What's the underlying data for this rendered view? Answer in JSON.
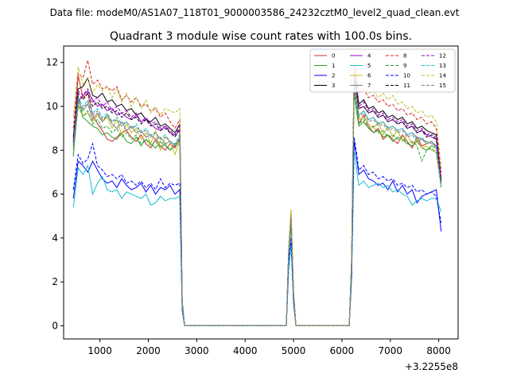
{
  "chart_data": {
    "type": "line",
    "suptitle": "Data file: modeM0/AS1A07_118T01_9000003586_24232cztM0_level2_quad_clean.evt",
    "title": "Quadrant 3 module wise count rates with 100.0s bins.",
    "xlabel": "",
    "ylabel": "",
    "x_offset_label": "+3.2255e8",
    "xlim": [
      250,
      8400
    ],
    "ylim": [
      -0.6,
      12.75
    ],
    "xticks": [
      1000,
      2000,
      3000,
      4000,
      5000,
      6000,
      7000,
      8000
    ],
    "yticks": [
      0,
      2,
      4,
      6,
      8,
      10,
      12
    ],
    "grid": false,
    "legend_position": "top-right",
    "legend_columns": 4,
    "gaps": [
      [
        2800,
        4800
      ],
      [
        5150,
        6100
      ]
    ],
    "x": [
      450,
      550,
      650,
      750,
      850,
      950,
      1050,
      1150,
      1250,
      1350,
      1450,
      1550,
      1650,
      1750,
      1850,
      1950,
      2050,
      2150,
      2250,
      2350,
      2450,
      2550,
      2650,
      2700,
      2750,
      4850,
      4900,
      4950,
      5000,
      5050,
      6150,
      6200,
      6250,
      6300,
      6350,
      6450,
      6550,
      6650,
      6750,
      6850,
      6950,
      7050,
      7150,
      7250,
      7350,
      7450,
      7550,
      7650,
      7750,
      7850,
      7950,
      8050
    ],
    "series": [
      {
        "name": "0",
        "color": "#d62728",
        "dash": "solid",
        "values": [
          8.2,
          11.4,
          10.4,
          10.6,
          9.6,
          9.2,
          8.9,
          8.5,
          8.4,
          8.6,
          8.8,
          8.9,
          8.6,
          8.4,
          8.7,
          8.3,
          8.1,
          8.5,
          8.2,
          8.0,
          8.3,
          8.1,
          8.6,
          1.0,
          0.0,
          0.0,
          3.3,
          4.7,
          1.4,
          0.0,
          0.0,
          2.8,
          10.8,
          10.3,
          9.2,
          9.6,
          9.1,
          8.8,
          9.0,
          8.5,
          8.7,
          8.5,
          8.3,
          8.7,
          8.4,
          8.1,
          8.6,
          8.2,
          8.3,
          8.4,
          8.2,
          6.8
        ]
      },
      {
        "name": "1",
        "color": "#2ca02c",
        "dash": "solid",
        "values": [
          7.7,
          10.5,
          9.5,
          9.3,
          9.1,
          9.0,
          8.7,
          8.8,
          8.6,
          8.5,
          8.8,
          8.4,
          8.3,
          8.6,
          8.2,
          8.5,
          8.3,
          8.1,
          8.4,
          8.2,
          8.0,
          8.3,
          8.4,
          0.9,
          0.0,
          0.0,
          3.2,
          4.6,
          1.3,
          0.0,
          0.0,
          2.7,
          10.6,
          9.8,
          9.1,
          9.3,
          9.0,
          8.8,
          8.9,
          8.6,
          8.7,
          8.4,
          8.6,
          8.5,
          8.3,
          8.2,
          8.4,
          8.1,
          8.0,
          8.2,
          8.1,
          6.5
        ]
      },
      {
        "name": "2",
        "color": "#0000ff",
        "dash": "solid",
        "values": [
          5.8,
          7.5,
          7.3,
          7.0,
          7.5,
          7.1,
          6.7,
          6.5,
          6.6,
          6.3,
          6.7,
          6.4,
          6.2,
          6.3,
          6.5,
          6.1,
          6.4,
          6.0,
          6.3,
          6.2,
          6.4,
          6.0,
          6.2,
          0.7,
          0.0,
          0.0,
          2.7,
          3.8,
          1.1,
          0.0,
          0.0,
          2.2,
          8.4,
          7.7,
          6.9,
          7.1,
          6.7,
          6.6,
          6.4,
          6.5,
          6.2,
          6.6,
          6.1,
          6.4,
          6.0,
          6.2,
          5.6,
          5.9,
          6.0,
          6.1,
          6.2,
          4.3
        ]
      },
      {
        "name": "3",
        "color": "#000000",
        "dash": "solid",
        "values": [
          8.6,
          10.8,
          10.9,
          11.3,
          10.5,
          10.4,
          10.6,
          10.2,
          10.3,
          10.0,
          10.1,
          9.8,
          9.9,
          9.6,
          9.7,
          9.4,
          9.3,
          9.5,
          9.1,
          9.2,
          9.0,
          8.8,
          9.2,
          1.1,
          0.0,
          0.0,
          3.4,
          5.0,
          1.5,
          0.0,
          0.0,
          3.0,
          11.6,
          11.0,
          10.1,
          10.3,
          9.9,
          10.0,
          9.7,
          9.8,
          9.5,
          9.6,
          9.4,
          9.5,
          9.2,
          9.3,
          9.0,
          9.1,
          8.9,
          8.8,
          8.7,
          6.7
        ]
      },
      {
        "name": "4",
        "color": "#9900cc",
        "dash": "solid",
        "values": [
          8.3,
          10.2,
          10.5,
          10.7,
          10.3,
          10.0,
          10.1,
          9.8,
          9.9,
          9.6,
          9.7,
          9.5,
          9.4,
          9.6,
          9.3,
          9.4,
          9.2,
          9.0,
          8.9,
          9.1,
          8.8,
          8.7,
          8.9,
          1.1,
          0.0,
          0.0,
          3.4,
          4.9,
          1.4,
          0.0,
          0.0,
          2.9,
          11.4,
          10.8,
          9.9,
          10.0,
          9.7,
          9.8,
          9.5,
          9.6,
          9.3,
          9.4,
          9.2,
          9.3,
          9.0,
          9.1,
          8.8,
          8.9,
          8.7,
          8.6,
          8.5,
          6.6
        ]
      },
      {
        "name": "5",
        "color": "#17becf",
        "dash": "solid",
        "values": [
          5.4,
          7.2,
          6.9,
          7.3,
          6.0,
          6.5,
          6.8,
          6.2,
          6.1,
          6.2,
          5.8,
          6.1,
          6.0,
          5.9,
          5.8,
          6.0,
          5.5,
          5.6,
          5.9,
          5.7,
          5.8,
          5.8,
          5.9,
          0.7,
          0.0,
          0.0,
          2.6,
          3.7,
          1.0,
          0.0,
          0.0,
          2.1,
          8.0,
          7.2,
          6.4,
          6.6,
          6.3,
          6.4,
          6.5,
          6.3,
          6.4,
          6.1,
          6.2,
          6.0,
          5.9,
          5.5,
          5.7,
          5.8,
          5.7,
          5.8,
          5.8,
          5.2
        ]
      },
      {
        "name": "6",
        "color": "#bcbd22",
        "dash": "solid",
        "values": [
          7.9,
          10.0,
          9.6,
          9.7,
          9.3,
          9.6,
          9.3,
          9.5,
          9.0,
          9.4,
          8.7,
          9.2,
          8.8,
          9.0,
          8.5,
          8.8,
          8.3,
          8.9,
          8.0,
          8.6,
          8.4,
          7.8,
          8.5,
          1.0,
          0.0,
          0.0,
          3.3,
          5.3,
          1.4,
          0.0,
          0.0,
          2.8,
          10.9,
          10.4,
          9.4,
          9.5,
          9.2,
          9.0,
          9.3,
          8.7,
          9.1,
          8.6,
          8.9,
          8.4,
          8.7,
          8.3,
          8.5,
          8.1,
          8.2,
          8.0,
          7.9,
          6.4
        ]
      },
      {
        "name": "7",
        "color": "#7f7f7f",
        "dash": "solid",
        "values": [
          8.0,
          10.3,
          9.8,
          10.1,
          9.4,
          9.7,
          9.3,
          9.6,
          9.2,
          9.0,
          9.3,
          8.9,
          9.1,
          8.8,
          8.9,
          8.6,
          8.7,
          8.5,
          8.6,
          8.3,
          8.4,
          8.2,
          8.5,
          1.0,
          0.0,
          0.0,
          3.3,
          4.8,
          1.4,
          0.0,
          0.0,
          2.9,
          11.2,
          10.5,
          9.6,
          9.8,
          9.4,
          9.5,
          9.2,
          9.3,
          9.0,
          9.1,
          8.9,
          9.0,
          8.7,
          8.8,
          8.6,
          8.5,
          8.4,
          8.3,
          8.2,
          6.5
        ]
      },
      {
        "name": "8",
        "color": "#d62728",
        "dash": "dashed",
        "values": [
          9.0,
          11.5,
          11.3,
          12.1,
          11.0,
          11.2,
          10.8,
          10.9,
          10.7,
          10.9,
          10.3,
          10.5,
          10.2,
          10.4,
          10.0,
          10.1,
          9.8,
          9.9,
          9.5,
          9.7,
          9.3,
          9.0,
          9.4,
          1.1,
          0.0,
          0.0,
          3.5,
          5.1,
          1.5,
          0.0,
          0.0,
          3.0,
          12.0,
          11.5,
          10.6,
          10.8,
          10.4,
          10.5,
          10.2,
          10.3,
          10.0,
          10.1,
          9.8,
          9.9,
          9.6,
          9.7,
          9.4,
          9.5,
          9.2,
          9.3,
          9.0,
          7.0
        ]
      },
      {
        "name": "9",
        "color": "#2ca02c",
        "dash": "dashed",
        "values": [
          7.8,
          10.1,
          9.5,
          9.8,
          9.2,
          9.4,
          9.0,
          9.1,
          8.8,
          9.0,
          8.6,
          8.8,
          8.5,
          8.7,
          8.3,
          8.5,
          8.2,
          8.4,
          8.1,
          8.3,
          8.0,
          8.2,
          8.3,
          1.0,
          0.0,
          0.0,
          3.2,
          4.6,
          1.3,
          0.0,
          0.0,
          2.8,
          10.7,
          10.0,
          9.2,
          9.4,
          9.0,
          9.1,
          8.8,
          8.9,
          8.6,
          8.7,
          8.5,
          8.6,
          8.3,
          8.4,
          8.2,
          7.5,
          8.0,
          8.1,
          7.9,
          6.3
        ]
      },
      {
        "name": "10",
        "color": "#0000ff",
        "dash": "dashed",
        "values": [
          6.2,
          7.8,
          7.4,
          7.6,
          8.3,
          7.3,
          7.1,
          6.8,
          6.9,
          6.7,
          6.9,
          6.5,
          6.6,
          6.4,
          6.6,
          6.3,
          6.5,
          6.2,
          6.7,
          6.3,
          6.5,
          6.4,
          6.5,
          0.8,
          0.0,
          0.0,
          2.8,
          4.0,
          1.1,
          0.0,
          0.0,
          2.3,
          8.6,
          7.9,
          7.1,
          7.3,
          6.9,
          7.0,
          6.7,
          6.8,
          6.6,
          6.7,
          6.4,
          6.5,
          6.3,
          6.4,
          6.1,
          6.2,
          6.0,
          6.1,
          5.9,
          4.7
        ]
      },
      {
        "name": "11",
        "color": "#000000",
        "dash": "dashed",
        "values": [
          8.4,
          10.6,
          10.3,
          10.6,
          10.0,
          10.2,
          9.9,
          10.0,
          9.7,
          9.8,
          9.5,
          9.7,
          9.4,
          9.5,
          9.2,
          9.4,
          9.1,
          9.2,
          8.9,
          9.0,
          8.8,
          8.6,
          9.0,
          1.1,
          0.0,
          0.0,
          3.4,
          4.9,
          1.4,
          0.0,
          0.0,
          2.9,
          11.3,
          10.7,
          9.9,
          10.0,
          9.7,
          9.8,
          9.5,
          9.6,
          9.3,
          9.4,
          9.2,
          9.3,
          9.0,
          9.1,
          8.8,
          8.9,
          8.6,
          8.7,
          8.5,
          6.6
        ]
      },
      {
        "name": "12",
        "color": "#9900cc",
        "dash": "dashed",
        "values": [
          8.5,
          10.7,
          10.5,
          10.8,
          10.2,
          10.4,
          10.0,
          10.2,
          9.8,
          10.0,
          9.7,
          9.8,
          9.5,
          9.7,
          9.3,
          9.5,
          9.2,
          9.3,
          9.0,
          9.1,
          8.9,
          8.7,
          9.1,
          1.1,
          0.0,
          0.0,
          3.4,
          5.0,
          1.5,
          0.0,
          0.0,
          3.0,
          11.5,
          10.9,
          10.0,
          10.2,
          9.8,
          9.9,
          9.6,
          9.7,
          9.4,
          9.5,
          9.3,
          9.4,
          9.1,
          9.2,
          8.9,
          9.0,
          8.7,
          8.8,
          8.6,
          6.7
        ]
      },
      {
        "name": "13",
        "color": "#17becf",
        "dash": "dashed",
        "values": [
          8.2,
          10.4,
          10.0,
          10.3,
          9.7,
          9.9,
          9.5,
          9.7,
          9.3,
          9.5,
          9.2,
          9.3,
          9.0,
          9.2,
          8.8,
          9.0,
          8.7,
          8.8,
          8.5,
          8.7,
          8.4,
          8.3,
          8.7,
          1.0,
          0.0,
          0.0,
          3.3,
          4.8,
          1.4,
          0.0,
          0.0,
          2.9,
          11.1,
          10.4,
          9.6,
          9.8,
          9.4,
          9.5,
          9.2,
          9.3,
          9.0,
          9.1,
          8.9,
          9.0,
          8.7,
          8.8,
          8.5,
          8.6,
          8.3,
          8.4,
          8.2,
          6.4
        ]
      },
      {
        "name": "14",
        "color": "#bcbd22",
        "dash": "dashed",
        "values": [
          9.5,
          11.8,
          11.0,
          11.3,
          10.6,
          11.0,
          10.7,
          10.9,
          10.4,
          10.8,
          10.2,
          10.6,
          10.0,
          10.4,
          9.9,
          10.3,
          9.7,
          10.0,
          9.6,
          9.9,
          9.8,
          9.7,
          9.9,
          1.2,
          0.0,
          0.0,
          3.6,
          5.3,
          1.6,
          0.0,
          0.0,
          3.1,
          11.9,
          11.3,
          10.9,
          11.0,
          10.6,
          10.7,
          10.4,
          10.6,
          10.3,
          10.5,
          10.1,
          10.2,
          9.9,
          10.0,
          9.7,
          9.8,
          9.5,
          9.6,
          9.3,
          7.2
        ]
      },
      {
        "name": "15",
        "color": "#7f7f7f",
        "dash": "dashed",
        "values": [
          8.1,
          10.2,
          9.9,
          10.2,
          9.6,
          9.8,
          9.4,
          9.6,
          9.3,
          9.4,
          9.1,
          9.3,
          9.0,
          9.1,
          8.8,
          8.9,
          8.6,
          8.8,
          8.5,
          8.6,
          8.4,
          8.2,
          8.6,
          1.0,
          0.0,
          0.0,
          3.3,
          4.8,
          1.4,
          0.0,
          0.0,
          2.9,
          11.0,
          10.3,
          9.5,
          9.7,
          9.3,
          9.4,
          9.1,
          9.2,
          8.9,
          9.0,
          8.8,
          8.9,
          8.6,
          8.7,
          8.4,
          8.5,
          8.3,
          8.4,
          8.1,
          6.4
        ]
      }
    ]
  }
}
